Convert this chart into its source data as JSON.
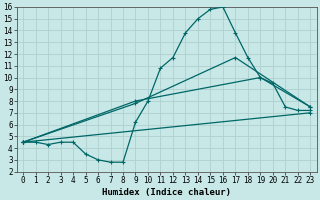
{
  "bg_color": "#c8e8e8",
  "grid_color": "#b0d0d0",
  "line_color": "#006666",
  "xlabel": "Humidex (Indice chaleur)",
  "xlim": [
    -0.5,
    23.5
  ],
  "ylim": [
    2,
    16
  ],
  "xticks": [
    0,
    1,
    2,
    3,
    4,
    5,
    6,
    7,
    8,
    9,
    10,
    11,
    12,
    13,
    14,
    15,
    16,
    17,
    18,
    19,
    20,
    21,
    22,
    23
  ],
  "yticks": [
    2,
    3,
    4,
    5,
    6,
    7,
    8,
    9,
    10,
    11,
    12,
    13,
    14,
    15,
    16
  ],
  "line1_x": [
    0,
    1,
    2,
    3,
    4,
    5,
    6,
    7,
    8,
    9,
    10,
    11,
    12,
    13,
    14,
    15,
    16,
    17,
    18,
    19,
    20,
    21,
    22,
    23
  ],
  "line1_y": [
    4.5,
    4.5,
    4.3,
    4.5,
    4.5,
    3.5,
    3.0,
    2.8,
    2.8,
    6.2,
    8.0,
    10.8,
    11.7,
    13.8,
    15.0,
    15.8,
    16.0,
    13.8,
    11.7,
    10.0,
    9.5,
    7.5,
    7.2,
    7.2
  ],
  "line2_x": [
    0,
    9,
    19,
    23
  ],
  "line2_y": [
    4.5,
    8.0,
    10.0,
    7.5
  ],
  "line3_x": [
    0,
    9,
    17,
    23
  ],
  "line3_y": [
    4.5,
    7.8,
    11.7,
    7.5
  ],
  "line4_x": [
    0,
    23
  ],
  "line4_y": [
    4.5,
    7.0
  ],
  "tick_fontsize": 5.5,
  "xlabel_fontsize": 6.5,
  "lw": 0.9,
  "marker_size": 3
}
